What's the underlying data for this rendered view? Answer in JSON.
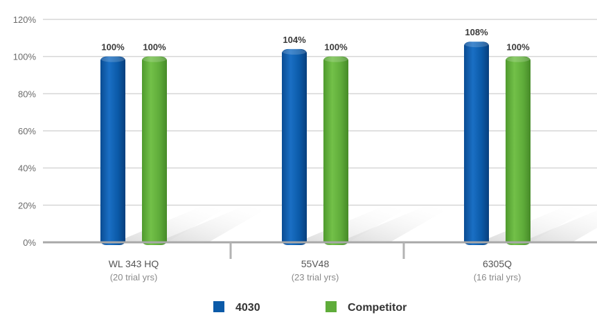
{
  "chart_data": {
    "type": "bar",
    "categories": [
      "WL 343 HQ",
      "55V48",
      "6305Q"
    ],
    "category_sublabels": [
      "(20 trial yrs)",
      "(23 trial yrs)",
      "(16 trial yrs)"
    ],
    "series": [
      {
        "name": "4030",
        "values": [
          100,
          104,
          108
        ],
        "labels": [
          "100%",
          "104%",
          "108%"
        ],
        "color": "#0b5aa8"
      },
      {
        "name": "Competitor",
        "values": [
          100,
          100,
          100
        ],
        "labels": [
          "100%",
          "100%",
          "100%"
        ],
        "color": "#5fac3a"
      }
    ],
    "y_ticks": [
      "0%",
      "20%",
      "40%",
      "60%",
      "80%",
      "100%",
      "120%"
    ],
    "ylim": [
      0,
      120
    ],
    "grid": true,
    "legend_position": "bottom-center",
    "title": "",
    "xlabel": "",
    "ylabel": ""
  }
}
